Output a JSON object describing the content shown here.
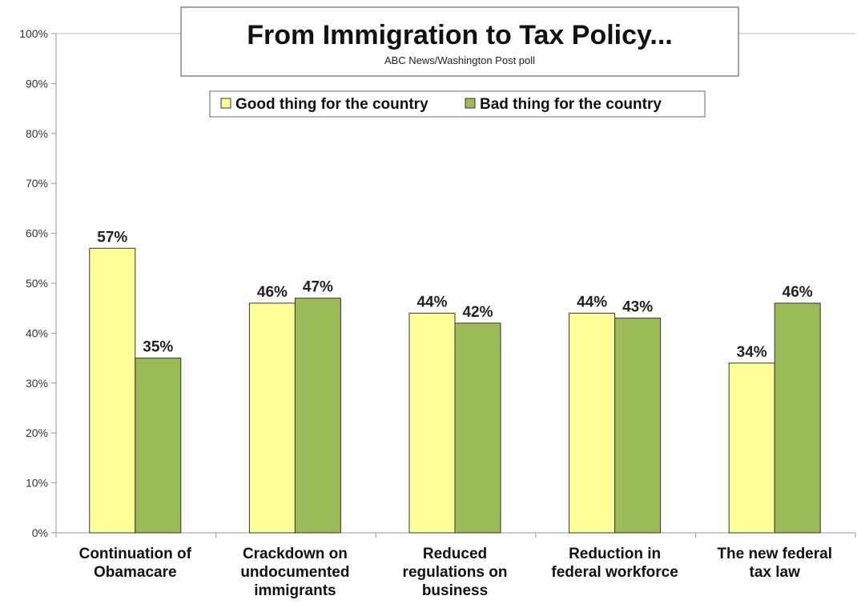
{
  "chart_data": {
    "type": "bar",
    "title": "From Immigration to Tax Policy...",
    "subtitle": "ABC News/Washington  Post poll",
    "categories": [
      [
        "Continuation of",
        "Obamacare"
      ],
      [
        "Crackdown on",
        "undocumented",
        "immigrants"
      ],
      [
        "Reduced",
        "regulations on",
        "business"
      ],
      [
        "Reduction in",
        "federal workforce"
      ],
      [
        "The new federal",
        "tax law"
      ]
    ],
    "series": [
      {
        "name": "Good thing for the country",
        "values": [
          57,
          46,
          44,
          44,
          34
        ],
        "color": "#ffff99",
        "labels": [
          "57%",
          "46%",
          "44%",
          "44%",
          "34%"
        ]
      },
      {
        "name": "Bad thing for the country",
        "values": [
          35,
          47,
          42,
          43,
          46
        ],
        "color": "#9bbb59",
        "labels": [
          "35%",
          "47%",
          "42%",
          "43%",
          "46%"
        ]
      }
    ],
    "y_ticks": [
      "0%",
      "10%",
      "20%",
      "30%",
      "40%",
      "50%",
      "60%",
      "70%",
      "80%",
      "90%",
      "100%"
    ],
    "ylim": [
      0,
      100
    ],
    "xlabel": "",
    "ylabel": "",
    "grid": "top line only",
    "legend_position": "top-center"
  },
  "colors": {
    "good": "#ffff99",
    "bad": "#9bbb59",
    "bar_border": "#333333",
    "axis": "#999999"
  }
}
